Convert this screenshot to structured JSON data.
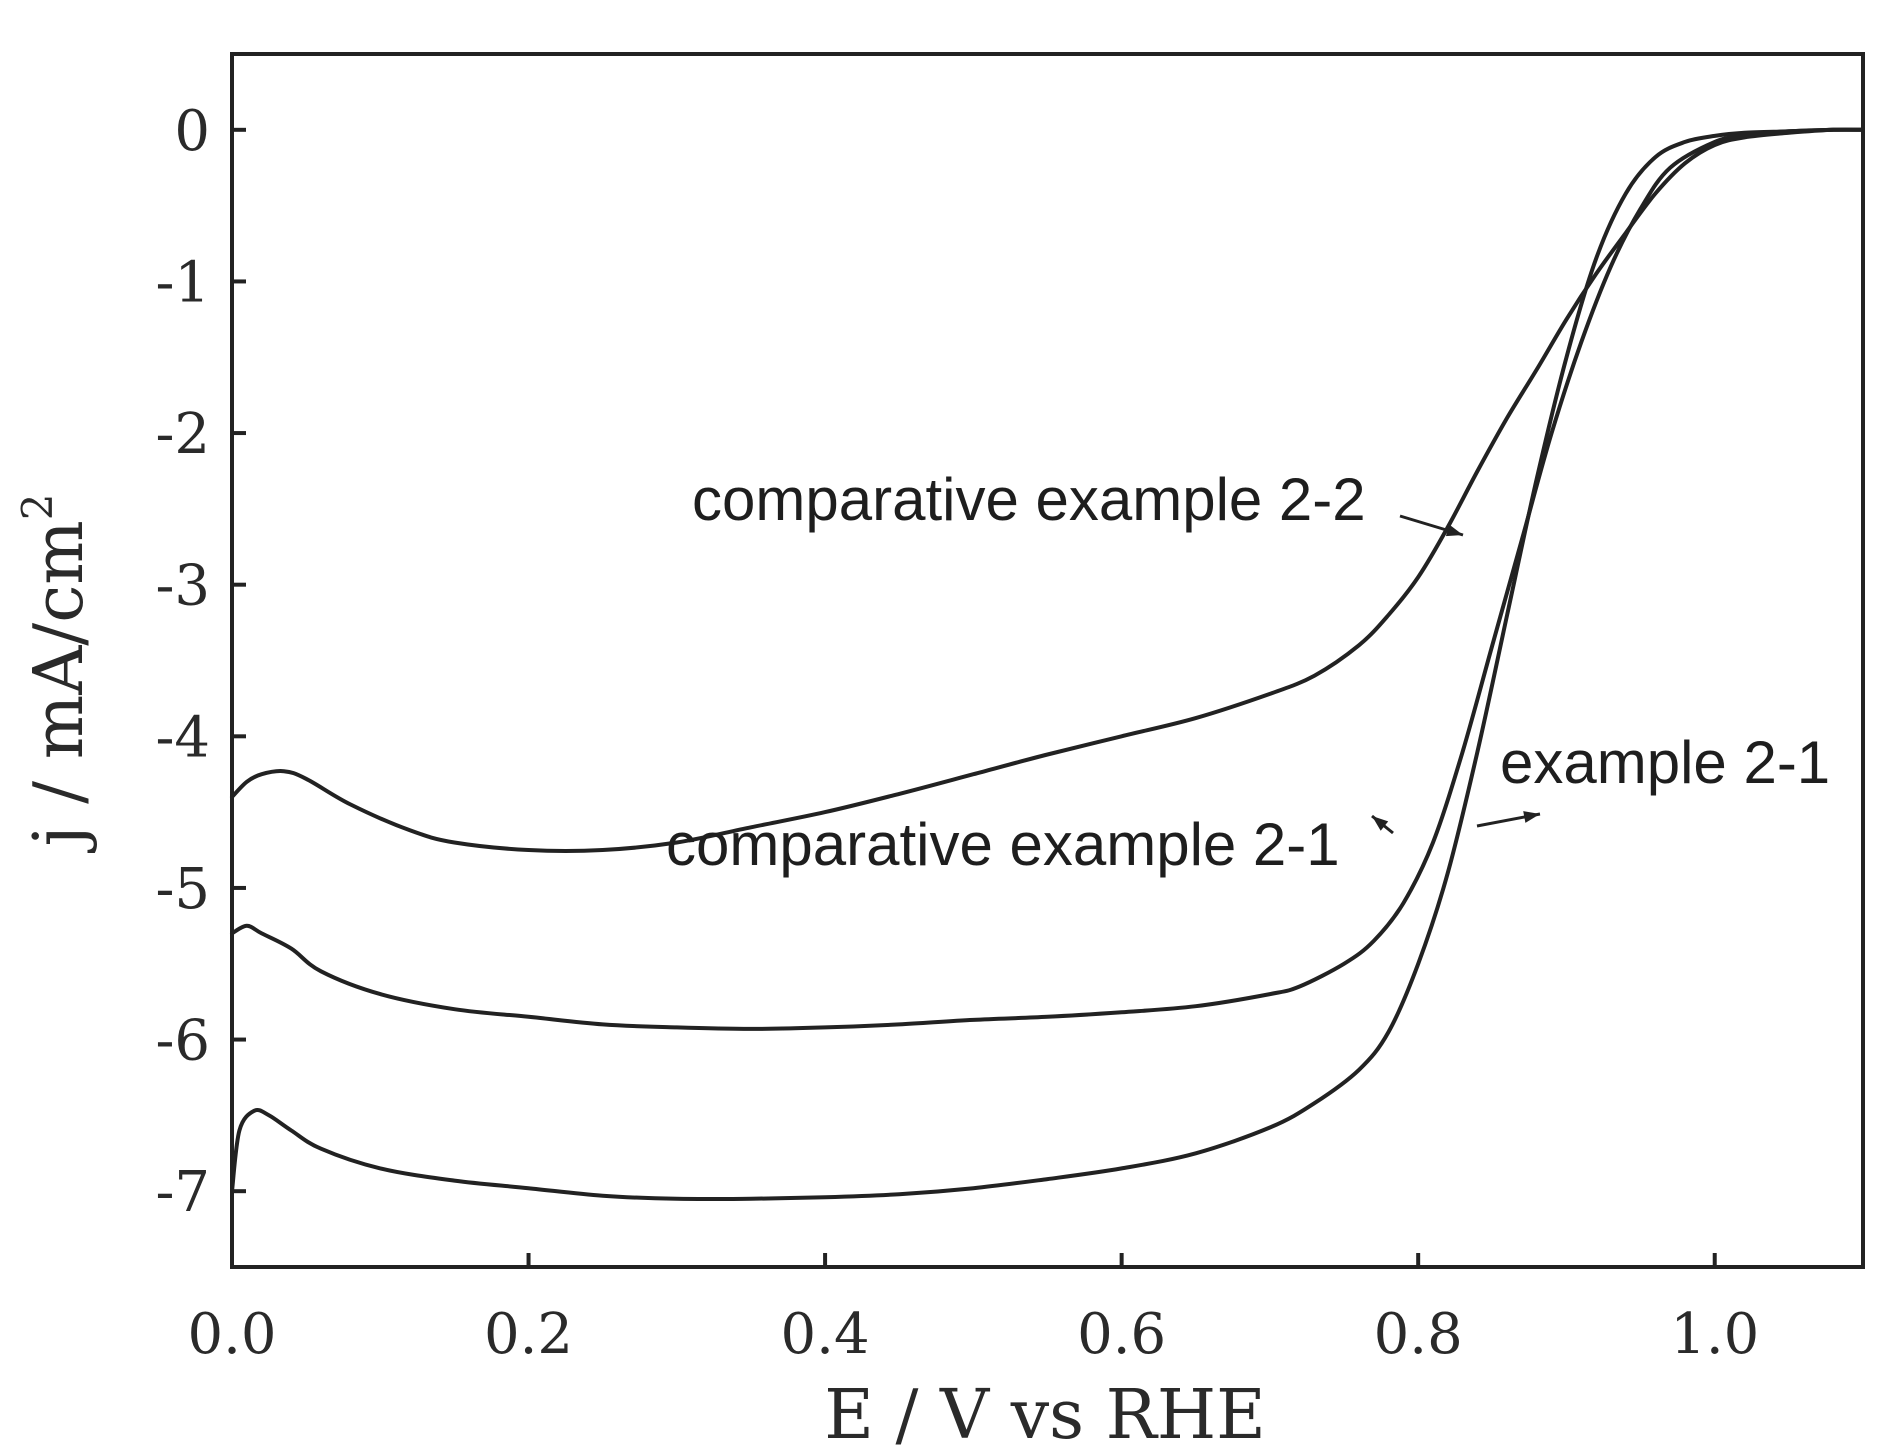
{
  "chart_data": {
    "type": "line",
    "title": "",
    "xlabel": "E / V vs RHE",
    "ylabel": "j / mA/cm",
    "ylabel_superscript": "2",
    "xlim": [
      0.0,
      1.1
    ],
    "ylim": [
      -7.5,
      0.5
    ],
    "xticks": [
      0.0,
      0.2,
      0.4,
      0.6,
      0.8,
      1.0
    ],
    "xtick_labels": [
      "0.0",
      "0.2",
      "0.4",
      "0.6",
      "0.8",
      "1.0"
    ],
    "yticks": [
      0,
      -1,
      -2,
      -3,
      -4,
      -5,
      -6,
      -7
    ],
    "ytick_labels": [
      "0",
      "-1",
      "-2",
      "-3",
      "-4",
      "-5",
      "-6",
      "-7"
    ],
    "grid": false,
    "legend": "none",
    "series": [
      {
        "name": "comparative example 2-2",
        "x": [
          0.0,
          0.01,
          0.02,
          0.035,
          0.05,
          0.08,
          0.12,
          0.15,
          0.2,
          0.25,
          0.3,
          0.35,
          0.4,
          0.45,
          0.5,
          0.55,
          0.6,
          0.65,
          0.7,
          0.73,
          0.76,
          0.78,
          0.8,
          0.82,
          0.84,
          0.86,
          0.88,
          0.9,
          0.92,
          0.94,
          0.96,
          0.98,
          1.0,
          1.02,
          1.05,
          1.08,
          1.1
        ],
        "y": [
          -4.4,
          -4.3,
          -4.25,
          -4.23,
          -4.28,
          -4.45,
          -4.62,
          -4.7,
          -4.75,
          -4.75,
          -4.7,
          -4.6,
          -4.5,
          -4.38,
          -4.25,
          -4.12,
          -4.0,
          -3.88,
          -3.72,
          -3.6,
          -3.4,
          -3.2,
          -2.95,
          -2.62,
          -2.25,
          -1.9,
          -1.58,
          -1.25,
          -0.95,
          -0.68,
          -0.42,
          -0.22,
          -0.1,
          -0.05,
          -0.02,
          0.0,
          0.0
        ]
      },
      {
        "name": "comparative example 2-1",
        "x": [
          0.0,
          0.01,
          0.02,
          0.04,
          0.06,
          0.1,
          0.15,
          0.2,
          0.25,
          0.3,
          0.35,
          0.4,
          0.45,
          0.5,
          0.55,
          0.6,
          0.65,
          0.7,
          0.72,
          0.75,
          0.77,
          0.79,
          0.81,
          0.83,
          0.85,
          0.87,
          0.89,
          0.91,
          0.93,
          0.95,
          0.97,
          1.0,
          1.02,
          1.05,
          1.08,
          1.1
        ],
        "y": [
          -5.3,
          -5.25,
          -5.3,
          -5.4,
          -5.55,
          -5.7,
          -5.8,
          -5.85,
          -5.9,
          -5.92,
          -5.93,
          -5.92,
          -5.9,
          -5.87,
          -5.85,
          -5.82,
          -5.78,
          -5.7,
          -5.65,
          -5.5,
          -5.35,
          -5.1,
          -4.7,
          -4.1,
          -3.4,
          -2.7,
          -2.0,
          -1.4,
          -0.9,
          -0.52,
          -0.25,
          -0.08,
          -0.04,
          -0.01,
          0.0,
          0.0
        ]
      },
      {
        "name": "example 2-1",
        "x": [
          0.0,
          0.005,
          0.015,
          0.025,
          0.04,
          0.06,
          0.1,
          0.15,
          0.2,
          0.25,
          0.3,
          0.35,
          0.4,
          0.45,
          0.5,
          0.55,
          0.6,
          0.65,
          0.7,
          0.73,
          0.76,
          0.78,
          0.8,
          0.82,
          0.84,
          0.86,
          0.88,
          0.9,
          0.92,
          0.94,
          0.96,
          0.98,
          1.0,
          1.02,
          1.05,
          1.08,
          1.1
        ],
        "y": [
          -7.0,
          -6.6,
          -6.47,
          -6.5,
          -6.6,
          -6.72,
          -6.85,
          -6.93,
          -6.98,
          -7.03,
          -7.05,
          -7.05,
          -7.04,
          -7.02,
          -6.98,
          -6.92,
          -6.85,
          -6.75,
          -6.58,
          -6.42,
          -6.2,
          -5.95,
          -5.5,
          -4.9,
          -4.1,
          -3.2,
          -2.3,
          -1.5,
          -0.85,
          -0.42,
          -0.18,
          -0.08,
          -0.04,
          -0.02,
          -0.01,
          0.0,
          0.0
        ]
      }
    ],
    "annotations": [
      {
        "text": "comparative example 2-2",
        "series": "comparative example 2-2"
      },
      {
        "text": "comparative example 2-1",
        "series": "comparative example 2-1"
      },
      {
        "text": "example 2-1",
        "series": "example 2-1"
      }
    ]
  }
}
